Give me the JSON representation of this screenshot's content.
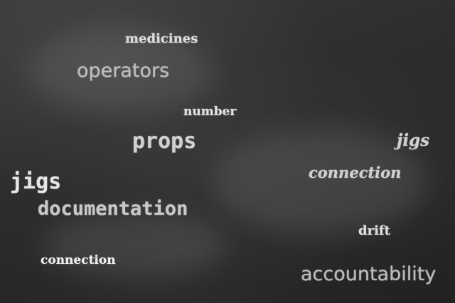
{
  "words": {
    "w1": "medicines",
    "w2": "operators",
    "w3": "number",
    "w4": "props",
    "w5": "jigs",
    "w6": "connection",
    "w7": "jigs",
    "w8": "documentation",
    "w9": "drift",
    "w10": "connection",
    "w11": "accountability"
  }
}
